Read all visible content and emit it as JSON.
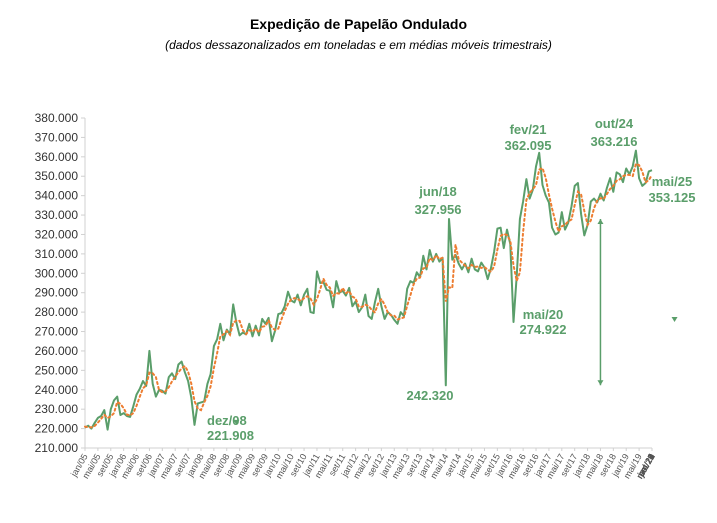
{
  "chart_data": {
    "type": "line",
    "title": "Expedição de Papelão Ondulado",
    "subtitle": "(dados dessazonalizados em toneladas e em médias móveis trimestrais)",
    "ylim": [
      210000,
      380000
    ],
    "yticks": [
      "210.000",
      "220.000",
      "230.000",
      "240.000",
      "250.000",
      "260.000",
      "270.000",
      "280.000",
      "290.000",
      "300.000",
      "310.000",
      "320.000",
      "330.000",
      "340.000",
      "350.000",
      "360.000",
      "370.000",
      "380.000"
    ],
    "xticks": [
      "jan/05",
      "mai/05",
      "set/05",
      "jan/06",
      "mai/06",
      "set/06",
      "jan/07",
      "mai/07",
      "set/07",
      "jan/08",
      "mai/08",
      "set/08",
      "jan/09",
      "mai/09",
      "set/09",
      "jan/10",
      "mai/10",
      "set/10",
      "jan/11",
      "mai/11",
      "set/11",
      "jan/12",
      "mai/12",
      "set/12",
      "jan/13",
      "mai/13",
      "set/13",
      "jan/14",
      "mai/14",
      "set/14",
      "jan/15",
      "mai/15",
      "set/15",
      "jan/16",
      "mai/16",
      "set/16",
      "jan/17",
      "mai/17",
      "set/17",
      "jan/18",
      "mai/18",
      "set/18",
      "jan/19",
      "mai/19",
      "set/19",
      "jan/20",
      "mai/20",
      "set/20",
      "jan/21",
      "mai/21",
      "set/21",
      "jan/22",
      "mai/22",
      "set/22",
      "jan/23",
      "mai/23",
      "set/23",
      "jan/24",
      "mai/24",
      "set/24",
      "jan/25",
      "mai/25"
    ],
    "grid": false,
    "legend": "none",
    "colors": {
      "series": "#5a9e6a",
      "moving_average": "#ed7d31"
    },
    "series": [
      {
        "values": [
          220500,
          221500,
          220000,
          223000,
          225500,
          226500,
          229500,
          219500,
          230000,
          234500,
          236500,
          227000,
          228000,
          226500,
          226000,
          231500,
          237500,
          240500,
          244500,
          242000,
          260000,
          243000,
          236500,
          240000,
          239500,
          238000,
          246500,
          248500,
          245500,
          253000,
          254500,
          249000,
          244500,
          236000,
          221908,
          233000,
          233500,
          234000,
          243000,
          248000,
          262500,
          266000,
          274000,
          265500,
          271000,
          268500,
          284000,
          274500,
          268000,
          269500,
          268500,
          274000,
          267500,
          273000,
          268000,
          276500,
          274000,
          277000,
          265000,
          270500,
          279000,
          279500,
          283000,
          290500,
          286000,
          285000,
          289000,
          283500,
          289000,
          292000,
          280000,
          279500,
          301000,
          295000,
          295500,
          291500,
          291000,
          282500,
          296000,
          290000,
          291000,
          288500,
          292500,
          283000,
          285500,
          280000,
          282500,
          289000,
          278000,
          276500,
          285000,
          292000,
          283000,
          276500,
          280000,
          278500,
          276000,
          274000,
          280000,
          278000,
          292000,
          296000,
          295000,
          300500,
          298000,
          309000,
          302000,
          312000,
          306000,
          310000,
          306000,
          308000,
          242320,
          327956,
          307000,
          309500,
          305000,
          302000,
          305000,
          300500,
          307500,
          302000,
          301000,
          305500,
          303000,
          297000,
          302500,
          311000,
          323000,
          323500,
          313000,
          322500,
          315000,
          274922,
          298500,
          328000,
          337000,
          348500,
          338500,
          343000,
          355000,
          362095,
          345500,
          340000,
          336500,
          323500,
          320000,
          321000,
          331500,
          322500,
          326000,
          334500,
          345000,
          346500,
          330500,
          319500,
          325000,
          337000,
          338500,
          336500,
          341000,
          337500,
          344000,
          349000,
          342000,
          352000,
          351000,
          347000,
          354000,
          351000,
          355000,
          363216,
          349000,
          345000,
          346500,
          352500,
          353125
        ]
      },
      {
        "values": [
          221000,
          220700,
          220600,
          221400,
          223100,
          225000,
          227100,
          225500,
          226300,
          228000,
          233700,
          232700,
          230500,
          227200,
          226800,
          228000,
          231700,
          236500,
          240800,
          242300,
          248800,
          248500,
          246500,
          239800,
          238700,
          239200,
          241300,
          244300,
          246800,
          249000,
          251000,
          252200,
          249300,
          243200,
          234100,
          230300,
          229500,
          233500,
          236800,
          241700,
          251200,
          258800,
          267500,
          268500,
          270200,
          268300,
          274500,
          275700,
          275500,
          270700,
          268700,
          270700,
          270000,
          271500,
          269500,
          272500,
          272800,
          275800,
          272000,
          270800,
          271500,
          276300,
          280500,
          284300,
          286500,
          287200,
          286700,
          285800,
          287200,
          288200,
          287000,
          283800,
          286800,
          291800,
          297200,
          294000,
          292700,
          288300,
          289800,
          289500,
          292400,
          289800,
          290700,
          288000,
          287000,
          282800,
          282700,
          283800,
          283200,
          281200,
          279800,
          284500,
          286700,
          283800,
          279800,
          278300,
          278200,
          276200,
          276700,
          277300,
          283300,
          288700,
          294300,
          297200,
          297800,
          302500,
          303000,
          307700,
          306700,
          309300,
          307300,
          308000,
          285400,
          292800,
          292400,
          314800,
          307200,
          305500,
          304000,
          302500,
          304300,
          303300,
          303500,
          302800,
          303200,
          301800,
          300800,
          303500,
          312200,
          319200,
          320300,
          319700,
          316800,
          304100,
          296100,
          300500,
          321200,
          337800,
          341300,
          343300,
          345500,
          353400,
          354200,
          349200,
          340700,
          333300,
          326700,
          321500,
          324200,
          325000,
          326700,
          327700,
          335200,
          342000,
          340700,
          332200,
          325000,
          327200,
          333500,
          337400,
          338700,
          338300,
          340800,
          343500,
          345000,
          347700,
          348400,
          350000,
          350700,
          350700,
          350000,
          356400,
          355700,
          352400,
          346800,
          348000,
          350700
        ]
      }
    ],
    "annotations": [
      {
        "label": "dez/08",
        "value": "221.908"
      },
      {
        "label": "jun/18",
        "value": "327.956"
      },
      {
        "label": "",
        "value": "242.320"
      },
      {
        "label": "mai/20",
        "value": "274.922"
      },
      {
        "label": "fev/21",
        "value": "362.095"
      },
      {
        "label": "out/24",
        "value": "363.216"
      },
      {
        "label": "mai/25",
        "value": "353.125"
      }
    ]
  }
}
